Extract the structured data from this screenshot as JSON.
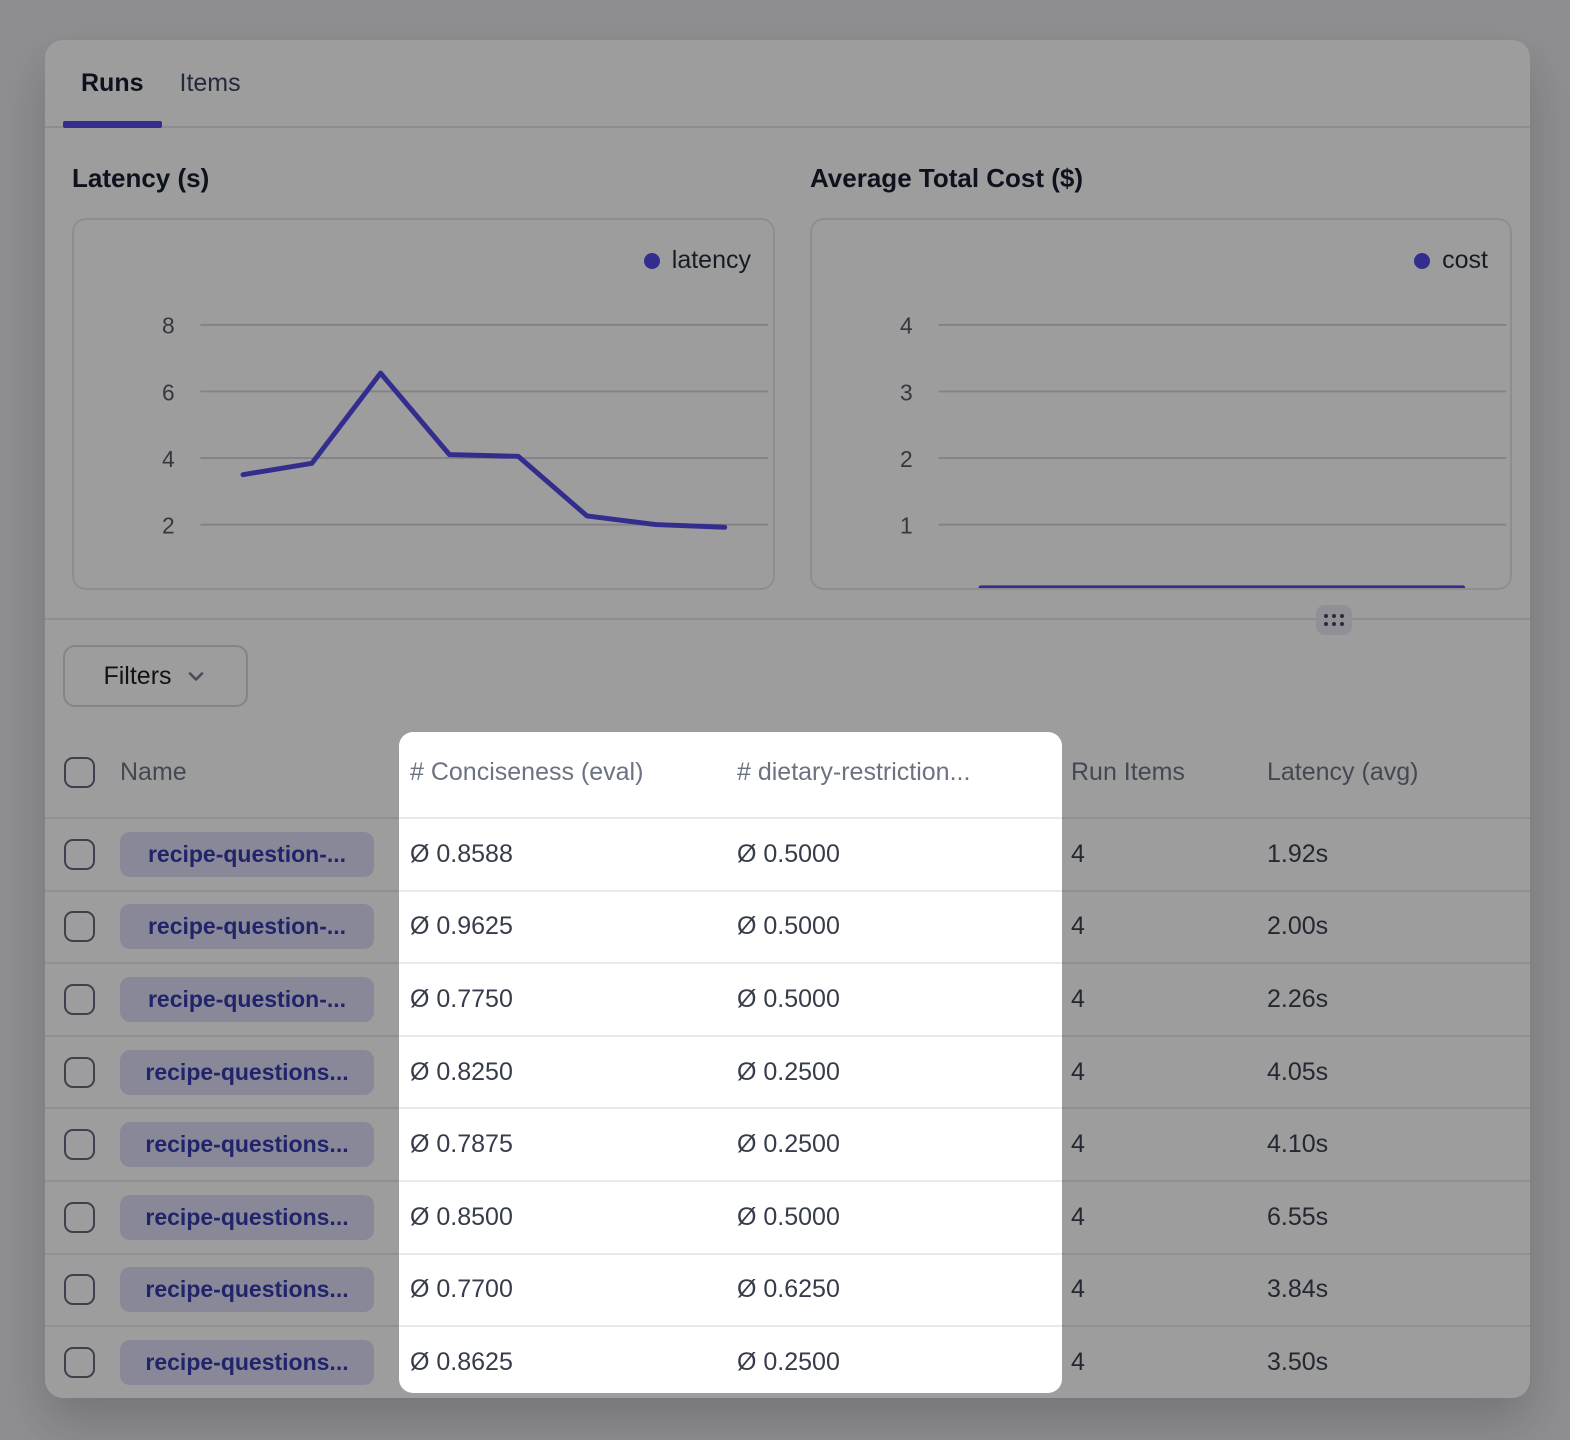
{
  "tabs": [
    {
      "label": "Runs",
      "active": true
    },
    {
      "label": "Items",
      "active": false
    }
  ],
  "charts": {
    "latency": {
      "title": "Latency (s)",
      "legend": "latency",
      "yticks": [
        8,
        6,
        4,
        2
      ],
      "values": [
        3.5,
        3.84,
        6.55,
        4.1,
        4.05,
        2.26,
        2.0,
        1.92
      ]
    },
    "cost": {
      "title": "Average Total Cost ($)",
      "legend": "cost",
      "yticks": [
        4,
        3,
        2,
        1
      ],
      "values": [
        0.05,
        0.05,
        0.05,
        0.05,
        0.05,
        0.05,
        0.05,
        0.05
      ]
    }
  },
  "chart_data": [
    {
      "type": "line",
      "title": "Latency (s)",
      "legend_entries": [
        "latency"
      ],
      "legend_position": "top-right",
      "x": [
        1,
        2,
        3,
        4,
        5,
        6,
        7,
        8
      ],
      "series": [
        {
          "name": "latency",
          "values": [
            3.5,
            3.84,
            6.55,
            4.1,
            4.05,
            2.26,
            2.0,
            1.92
          ]
        }
      ],
      "ylim": [
        0,
        9
      ],
      "yticks": [
        2,
        4,
        6,
        8
      ],
      "grid": true,
      "xlabel": "",
      "ylabel": ""
    },
    {
      "type": "line",
      "title": "Average Total Cost ($)",
      "legend_entries": [
        "cost"
      ],
      "legend_position": "top-right",
      "x": [
        1,
        2,
        3,
        4,
        5,
        6,
        7,
        8
      ],
      "series": [
        {
          "name": "cost",
          "values": [
            0.05,
            0.05,
            0.05,
            0.05,
            0.05,
            0.05,
            0.05,
            0.05
          ]
        }
      ],
      "ylim": [
        0,
        4.5
      ],
      "yticks": [
        1,
        2,
        3,
        4
      ],
      "grid": true,
      "xlabel": "",
      "ylabel": ""
    }
  ],
  "filters": {
    "label": "Filters"
  },
  "table": {
    "headers": [
      "Name",
      "# Conciseness (eval)",
      "# dietary-restriction...",
      "Run Items",
      "Latency (avg)"
    ],
    "rows": [
      {
        "name": "recipe-question-...",
        "conciseness": "Ø 0.8588",
        "dietary": "Ø 0.5000",
        "run_items": "4",
        "latency": "1.92s"
      },
      {
        "name": "recipe-question-...",
        "conciseness": "Ø 0.9625",
        "dietary": "Ø 0.5000",
        "run_items": "4",
        "latency": "2.00s"
      },
      {
        "name": "recipe-question-...",
        "conciseness": "Ø 0.7750",
        "dietary": "Ø 0.5000",
        "run_items": "4",
        "latency": "2.26s"
      },
      {
        "name": "recipe-questions...",
        "conciseness": "Ø 0.8250",
        "dietary": "Ø 0.2500",
        "run_items": "4",
        "latency": "4.05s"
      },
      {
        "name": "recipe-questions...",
        "conciseness": "Ø 0.7875",
        "dietary": "Ø 0.2500",
        "run_items": "4",
        "latency": "4.10s"
      },
      {
        "name": "recipe-questions...",
        "conciseness": "Ø 0.8500",
        "dietary": "Ø 0.5000",
        "run_items": "4",
        "latency": "6.55s"
      },
      {
        "name": "recipe-questions...",
        "conciseness": "Ø 0.7700",
        "dietary": "Ø 0.6250",
        "run_items": "4",
        "latency": "3.84s"
      },
      {
        "name": "recipe-questions...",
        "conciseness": "Ø 0.8625",
        "dietary": "Ø 0.2500",
        "run_items": "4",
        "latency": "3.50s"
      }
    ]
  },
  "colors": {
    "accent": "#4f46e5",
    "badge_bg": "#dedcf7",
    "badge_text": "#3136a8",
    "overlay": "rgba(10,10,12,0.40)",
    "card_bg": "#ffffff",
    "page_bg": "#e7e7e9"
  }
}
